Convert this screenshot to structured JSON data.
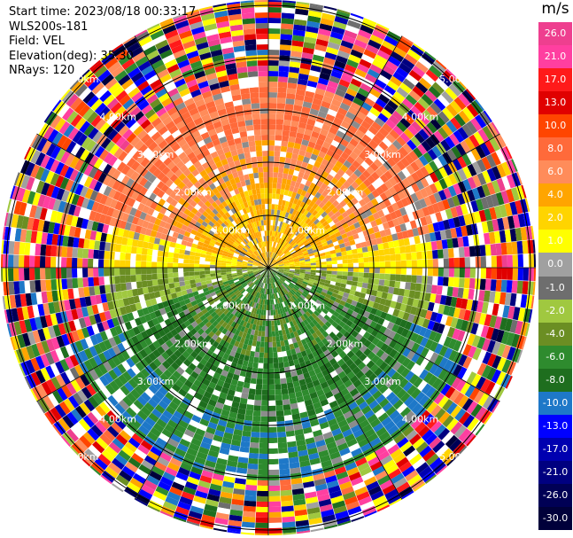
{
  "header": {
    "start_time": "Start time: 2023/08/18 00:33:17",
    "site": "WLS200s-181",
    "field": "Field: VEL",
    "elevation": "Elevation(deg): 35.30",
    "nrays": "NRays: 120"
  },
  "range_rings": [
    "1.00km",
    "2.00km",
    "3.00km",
    "4.00km",
    "5.00km"
  ],
  "colorbar": {
    "unit": "m/s",
    "ticks": [
      "26.0",
      "21.0",
      "17.0",
      "13.0",
      "10.0",
      "8.0",
      "6.0",
      "4.0",
      "2.0",
      "1.0",
      "0.0",
      "-1.0",
      "-2.0",
      "-4.0",
      "-6.0",
      "-8.0",
      "-10.0",
      "-13.0",
      "-17.0",
      "-21.0",
      "-26.0",
      "-30.0"
    ],
    "colors": [
      "#ee3f8f",
      "#ff3fa0",
      "#ff1a1a",
      "#e00000",
      "#ff4500",
      "#ff6a3a",
      "#ff8c5a",
      "#ffa500",
      "#ffd400",
      "#ffff00",
      "#a0a0a0",
      "#6e6e6e",
      "#a0c840",
      "#6b8e23",
      "#2e8b2e",
      "#1e6e1e",
      "#1e78c8",
      "#0000ff",
      "#0000b0",
      "#000080",
      "#000055",
      "#00003a"
    ]
  }
}
